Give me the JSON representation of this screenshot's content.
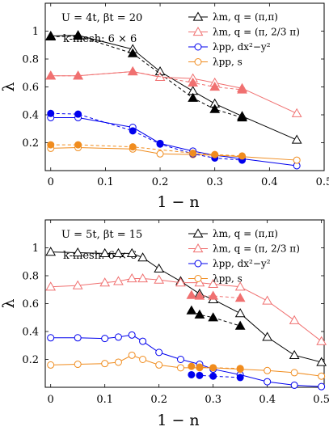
{
  "chart_data": [
    {
      "type": "line",
      "annotation_params": "U = 4t,    βt = 20",
      "annotation_mesh": "k-mesh: 6 × 6",
      "xlabel": "1 − n",
      "ylabel": "λ",
      "xlim": [
        -0.01,
        0.5
      ],
      "ylim": [
        0,
        1.2
      ],
      "xticks": [
        "0",
        "0.1",
        "0.2",
        "0.3",
        "0.4",
        "0.5"
      ],
      "yticks": [
        "0.2",
        "0.4",
        "0.6",
        "0.8",
        "1"
      ],
      "legend_position": "top-right",
      "series": [
        {
          "name": "λm, q = (π,π)",
          "color": "#000000",
          "marker": "triangle-open",
          "style": "solid",
          "x": [
            0,
            0.05,
            0.15,
            0.2,
            0.26,
            0.3,
            0.35,
            0.45
          ],
          "y": [
            0.965,
            0.97,
            0.87,
            0.71,
            0.57,
            0.48,
            0.39,
            0.22
          ]
        },
        {
          "name": "λm, q = (π, 2/3 π)",
          "color": "#f07070",
          "marker": "triangle-open",
          "style": "solid",
          "x": [
            0,
            0.05,
            0.15,
            0.2,
            0.26,
            0.3,
            0.35,
            0.45
          ],
          "y": [
            0.68,
            0.68,
            0.71,
            0.67,
            0.66,
            0.63,
            0.59,
            0.41
          ]
        },
        {
          "name": "λpp, dx²−y²",
          "color": "#0000ee",
          "marker": "circle-open",
          "style": "solid",
          "x": [
            0,
            0.05,
            0.15,
            0.2,
            0.26,
            0.3,
            0.35,
            0.45
          ],
          "y": [
            0.38,
            0.38,
            0.31,
            0.195,
            0.14,
            0.11,
            0.085,
            0.035
          ]
        },
        {
          "name": "λpp, s",
          "color": "#f08c1e",
          "marker": "circle-open",
          "style": "solid",
          "x": [
            0,
            0.05,
            0.15,
            0.2,
            0.26,
            0.3,
            0.35,
            0.45
          ],
          "y": [
            0.16,
            0.165,
            0.155,
            0.12,
            0.115,
            0.11,
            0.1,
            0.075
          ]
        },
        {
          "name": "",
          "color": "#000000",
          "marker": "triangle-filled",
          "style": "dashed",
          "x": [
            0,
            0.05,
            0.15,
            0.26,
            0.3,
            0.35
          ],
          "y": [
            0.96,
            0.965,
            0.84,
            0.52,
            0.44,
            0.38
          ]
        },
        {
          "name": "",
          "color": "#f07070",
          "marker": "triangle-filled",
          "style": "dashed",
          "x": [
            0,
            0.05,
            0.15,
            0.26,
            0.3,
            0.35
          ],
          "y": [
            0.68,
            0.68,
            0.71,
            0.63,
            0.6,
            0.58
          ]
        },
        {
          "name": "",
          "color": "#0000ee",
          "marker": "circle-filled",
          "style": "dashed",
          "x": [
            0,
            0.05,
            0.15,
            0.2,
            0.26,
            0.3,
            0.35
          ],
          "y": [
            0.41,
            0.405,
            0.285,
            0.19,
            0.12,
            0.09,
            0.075
          ]
        },
        {
          "name": "",
          "color": "#f08c1e",
          "marker": "circle-filled",
          "style": "dashed",
          "x": [
            0,
            0.05,
            0.15,
            0.26,
            0.3,
            0.35
          ],
          "y": [
            0.185,
            0.185,
            0.17,
            0.125,
            0.115,
            0.105
          ]
        }
      ]
    },
    {
      "type": "line",
      "annotation_params": "U = 5t,    βt = 15",
      "annotation_mesh": "k-mesh: 6 × 6",
      "xlabel": "1 − n",
      "ylabel": "λ",
      "xlim": [
        -0.01,
        0.505
      ],
      "ylim": [
        0,
        1.2
      ],
      "xticks": [
        "0",
        "0.1",
        "0.2",
        "0.3",
        "0.4",
        "0.5"
      ],
      "yticks": [
        "0.2",
        "0.4",
        "0.6",
        "0.8",
        "1"
      ],
      "legend_position": "top-right",
      "series": [
        {
          "name": "λm, q = (π,π)",
          "color": "#000000",
          "marker": "triangle-open",
          "style": "solid",
          "x": [
            0,
            0.05,
            0.1,
            0.125,
            0.15,
            0.17,
            0.2,
            0.24,
            0.275,
            0.3,
            0.35,
            0.4,
            0.45,
            0.5
          ],
          "y": [
            0.97,
            0.965,
            0.96,
            0.96,
            0.96,
            0.93,
            0.85,
            0.76,
            0.67,
            0.63,
            0.53,
            0.36,
            0.23,
            0.18
          ]
        },
        {
          "name": "λm, q = (π, 2/3 π)",
          "color": "#f07070",
          "marker": "triangle-open",
          "style": "solid",
          "x": [
            0,
            0.05,
            0.1,
            0.125,
            0.15,
            0.17,
            0.2,
            0.24,
            0.275,
            0.3,
            0.35,
            0.4,
            0.45,
            0.5
          ],
          "y": [
            0.72,
            0.73,
            0.75,
            0.76,
            0.78,
            0.78,
            0.77,
            0.75,
            0.75,
            0.74,
            0.72,
            0.62,
            0.48,
            0.33
          ]
        },
        {
          "name": "λpp, dx²−y²",
          "color": "#0000ee",
          "marker": "circle-open",
          "style": "solid",
          "x": [
            0,
            0.05,
            0.1,
            0.125,
            0.15,
            0.17,
            0.2,
            0.24,
            0.275,
            0.3,
            0.35,
            0.4,
            0.45,
            0.5
          ],
          "y": [
            0.355,
            0.355,
            0.35,
            0.36,
            0.375,
            0.33,
            0.25,
            0.2,
            0.165,
            0.13,
            0.09,
            0.04,
            0.015,
            0.005
          ]
        },
        {
          "name": "λpp, s",
          "color": "#f08c1e",
          "marker": "circle-open",
          "style": "solid",
          "x": [
            0,
            0.05,
            0.1,
            0.125,
            0.15,
            0.17,
            0.2,
            0.24,
            0.275,
            0.3,
            0.35,
            0.4,
            0.45,
            0.5
          ],
          "y": [
            0.16,
            0.165,
            0.17,
            0.18,
            0.23,
            0.2,
            0.16,
            0.14,
            0.14,
            0.14,
            0.13,
            0.12,
            0.105,
            0.08
          ]
        },
        {
          "name": "",
          "color": "#000000",
          "marker": "triangle-filled",
          "style": "dashed",
          "x": [
            0.26,
            0.275,
            0.3,
            0.35
          ],
          "y": [
            0.55,
            0.52,
            0.5,
            0.44
          ]
        },
        {
          "name": "",
          "color": "#f07070",
          "marker": "triangle-filled",
          "style": "dashed",
          "x": [
            0.26,
            0.275,
            0.3,
            0.35
          ],
          "y": [
            0.66,
            0.655,
            0.655,
            0.64
          ]
        },
        {
          "name": "",
          "color": "#0000ee",
          "marker": "circle-filled",
          "style": "dashed",
          "x": [
            0.26,
            0.275,
            0.3,
            0.35
          ],
          "y": [
            0.09,
            0.085,
            0.08,
            0.07
          ]
        },
        {
          "name": "",
          "color": "#f08c1e",
          "marker": "circle-filled",
          "style": "dashed",
          "x": [
            0.26,
            0.275,
            0.3,
            0.35
          ],
          "y": [
            0.15,
            0.145,
            0.14,
            0.135
          ]
        }
      ]
    }
  ]
}
